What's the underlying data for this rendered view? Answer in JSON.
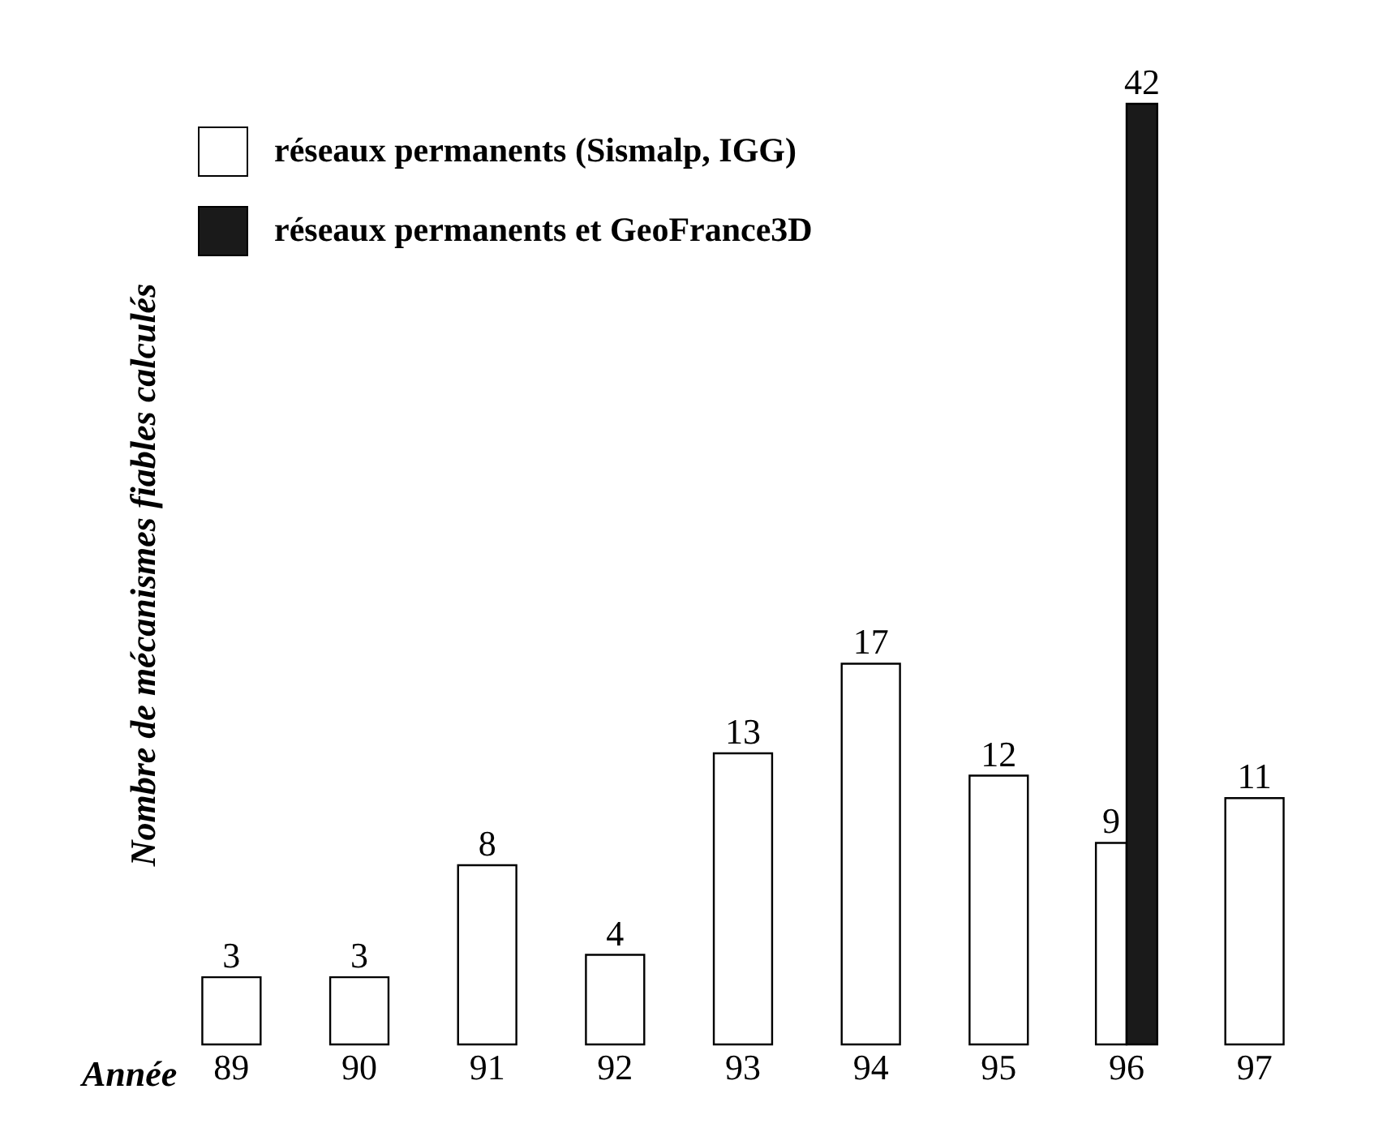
{
  "chart_data": {
    "type": "bar",
    "xlabel": "Année",
    "ylabel": "Nombre de mécanismes fiables calculés",
    "categories": [
      "89",
      "90",
      "91",
      "92",
      "93",
      "94",
      "95",
      "96",
      "97"
    ],
    "series": [
      {
        "name": "réseaux permanents (Sismalp, IGG)",
        "color": "#ffffff",
        "values": [
          3,
          3,
          8,
          4,
          13,
          17,
          12,
          9,
          11
        ]
      },
      {
        "name": "réseaux permanents et GeoFrance3D",
        "color": "#1a1a1a",
        "values": [
          null,
          null,
          null,
          null,
          null,
          null,
          null,
          42,
          null
        ]
      }
    ],
    "data_labels": true,
    "legend": "top left",
    "grid": false
  }
}
